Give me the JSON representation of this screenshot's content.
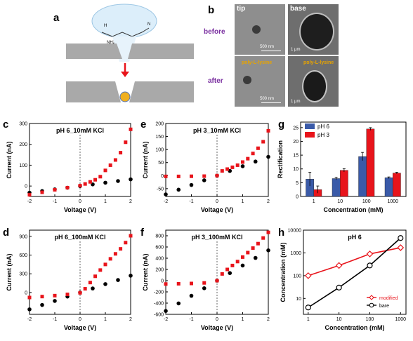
{
  "panel_a": {
    "letter": "a",
    "molecule": {
      "nh2": "NH2",
      "h": "H",
      "n": "N"
    }
  },
  "panel_b": {
    "letter": "b",
    "col_tip": "tip",
    "col_base": "base",
    "row_before": "before",
    "row_after": "after",
    "scale_tip": "500 nm",
    "scale_base": "1 μm",
    "annotation": "poly-L-lysine"
  },
  "colors": {
    "red": "#e8141b",
    "black": "#000000",
    "blue": "#3a5aa8"
  },
  "chart_data": [
    {
      "id": "c",
      "letter": "c",
      "type": "scatter",
      "title": "pH 6_10mM KCl",
      "xlabel": "Voltage (V)",
      "ylabel": "Current (nA)",
      "xlim": [
        -2,
        2
      ],
      "ylim": [
        -50,
        300
      ],
      "xticks": [
        -2,
        -1,
        0,
        1,
        2
      ],
      "yticks": [
        0,
        100,
        200,
        300
      ],
      "series": [
        {
          "color": "red",
          "marker": "square",
          "x": [
            -2,
            -1.5,
            -1,
            -0.5,
            0,
            0.2,
            0.4,
            0.6,
            0.8,
            1.0,
            1.2,
            1.4,
            1.6,
            1.8,
            2.0
          ],
          "y": [
            -42,
            -30,
            -18,
            -8,
            2,
            10,
            20,
            30,
            45,
            75,
            100,
            125,
            160,
            210,
            272
          ]
        },
        {
          "color": "black",
          "marker": "circle",
          "x": [
            -2,
            -1.5,
            -1,
            -0.5,
            0,
            0.5,
            1,
            1.5,
            2
          ],
          "y": [
            -32,
            -24,
            -16,
            -8,
            0,
            8,
            16,
            24,
            32
          ]
        }
      ]
    },
    {
      "id": "e",
      "letter": "e",
      "type": "scatter",
      "title": "pH 3_10mM KCl",
      "xlabel": "Voltage (V)",
      "ylabel": "Current (nA)",
      "xlim": [
        -2,
        2
      ],
      "ylim": [
        -80,
        200
      ],
      "xticks": [
        -2,
        -1,
        0,
        1,
        2
      ],
      "yticks": [
        -50,
        0,
        50,
        100,
        150,
        200
      ],
      "series": [
        {
          "color": "red",
          "marker": "square",
          "x": [
            -2,
            -1.5,
            -1,
            -0.5,
            0,
            0.2,
            0.4,
            0.6,
            0.8,
            1.0,
            1.2,
            1.4,
            1.6,
            1.8,
            2.0
          ],
          "y": [
            -3,
            -3,
            -2.5,
            -2,
            0,
            18,
            25,
            32,
            40,
            52,
            65,
            85,
            105,
            130,
            172
          ]
        },
        {
          "color": "black",
          "marker": "circle",
          "x": [
            -2,
            -1.5,
            -1,
            -0.5,
            0,
            0.5,
            1,
            1.5,
            2
          ],
          "y": [
            -72,
            -54,
            -36,
            -18,
            0,
            18,
            36,
            54,
            72
          ]
        }
      ]
    },
    {
      "id": "g",
      "letter": "g",
      "type": "bar",
      "title": "",
      "xlabel": "Concentration (mM)",
      "ylabel": "Rectification",
      "categories": [
        "1",
        "10",
        "100",
        "1000"
      ],
      "ylim": [
        0,
        27
      ],
      "yticks": [
        0,
        5,
        10,
        15,
        20,
        25
      ],
      "legend_position": "top-left",
      "series": [
        {
          "name": "pH 6",
          "color": "blue",
          "values": [
            6.3,
            6.5,
            14.5,
            6.8
          ],
          "errors": [
            2.5,
            0.5,
            1.5,
            0.3
          ]
        },
        {
          "name": "pH 3",
          "color": "red",
          "values": [
            2.5,
            9.5,
            24.5,
            8.5
          ],
          "errors": [
            1.3,
            0.6,
            0.5,
            0.3
          ]
        }
      ]
    },
    {
      "id": "d",
      "letter": "d",
      "type": "scatter",
      "title": "pH 6_100mM KCl",
      "xlabel": "Voltage (V)",
      "ylabel": "Current (nA)",
      "xlim": [
        -2,
        2
      ],
      "ylim": [
        -350,
        1000
      ],
      "xticks": [
        -2,
        -1,
        0,
        1,
        2
      ],
      "yticks": [
        0,
        300,
        600,
        900
      ],
      "series": [
        {
          "color": "red",
          "marker": "square",
          "x": [
            -2,
            -1.5,
            -1,
            -0.5,
            0,
            0.2,
            0.4,
            0.6,
            0.8,
            1.0,
            1.2,
            1.4,
            1.6,
            1.8,
            2.0
          ],
          "y": [
            -80,
            -65,
            -50,
            -30,
            -5,
            60,
            160,
            260,
            360,
            450,
            540,
            620,
            700,
            800,
            910
          ]
        },
        {
          "color": "black",
          "marker": "circle",
          "x": [
            -2,
            -1.5,
            -1,
            -0.5,
            0,
            0.5,
            1,
            1.5,
            2
          ],
          "y": [
            -270,
            -200,
            -135,
            -65,
            0,
            65,
            135,
            200,
            270
          ]
        }
      ]
    },
    {
      "id": "f",
      "letter": "f",
      "type": "scatter",
      "title": "pH 3_100mM KCl",
      "xlabel": "Voltage (V)",
      "ylabel": "Current (nA)",
      "xlim": [
        -2,
        2
      ],
      "ylim": [
        -600,
        900
      ],
      "xticks": [
        -2,
        -1,
        0,
        1,
        2
      ],
      "yticks": [
        -600,
        -400,
        -200,
        0,
        200,
        400,
        600,
        800
      ],
      "series": [
        {
          "color": "red",
          "marker": "square",
          "x": [
            -2,
            -1.5,
            -1,
            -0.5,
            0,
            0.2,
            0.4,
            0.6,
            0.8,
            1.0,
            1.2,
            1.4,
            1.6,
            1.8,
            2.0
          ],
          "y": [
            -60,
            -55,
            -50,
            -40,
            0,
            120,
            200,
            270,
            340,
            420,
            500,
            580,
            660,
            760,
            860
          ]
        },
        {
          "color": "black",
          "marker": "circle",
          "x": [
            -2,
            -1.5,
            -1,
            -0.5,
            0,
            0.5,
            1,
            1.5,
            2
          ],
          "y": [
            -540,
            -405,
            -270,
            -135,
            0,
            135,
            270,
            405,
            540
          ]
        }
      ]
    },
    {
      "id": "h",
      "letter": "h",
      "type": "line",
      "title": "pH 6",
      "yscale": "log",
      "xscale": "log",
      "xlabel": "Concentration (mM)",
      "ylabel": "Concentration (mM)",
      "xlim": [
        0.7,
        1500
      ],
      "ylim": [
        2,
        10000
      ],
      "xticks": [
        1,
        10,
        100,
        1000
      ],
      "yticks": [
        10,
        100,
        1000,
        10000
      ],
      "legend_position": "bottom-right",
      "series": [
        {
          "name": "modified",
          "color": "red",
          "marker": "diamond",
          "x": [
            1,
            10,
            100,
            1000
          ],
          "y": [
            100,
            280,
            900,
            1700
          ]
        },
        {
          "name": "bare",
          "color": "black",
          "marker": "circle",
          "x": [
            1,
            10,
            100,
            1000
          ],
          "y": [
            4,
            30,
            280,
            4500
          ]
        }
      ]
    }
  ]
}
